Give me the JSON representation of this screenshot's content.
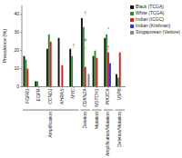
{
  "chart_data": {
    "type": "bar",
    "categories": [
      "FGFR1",
      "EGFR",
      "CCND1",
      "KHRAS",
      "MYC",
      "CDKN2A",
      "NOTCH1",
      "PIK3CA",
      "USP8"
    ],
    "series": [
      {
        "name": "Black (TCGA)",
        "color": "#111111",
        "values": [
          17,
          3,
          21,
          27,
          21,
          38,
          17,
          27,
          7
        ]
      },
      {
        "name": "White (TCGA)",
        "color": "#2e8b2e",
        "values": [
          15,
          3,
          29,
          0,
          17,
          33,
          20,
          29,
          5
        ]
      },
      {
        "name": "Indian (ICGC)",
        "color": "#cc2222",
        "values": [
          10,
          0,
          25,
          12,
          0,
          11,
          16,
          19,
          19
        ]
      },
      {
        "name": "Indian (Krishnan)",
        "color": "#3333cc",
        "values": [
          0,
          0,
          0,
          0,
          0,
          0,
          0,
          13,
          0
        ]
      },
      {
        "name": "Singaporean (Vettore)",
        "color": "#888888",
        "values": [
          0,
          0,
          0,
          0,
          0,
          7,
          0,
          0,
          0
        ]
      }
    ],
    "ylabel": "Prevalence (%)",
    "ylim": [
      0,
      45
    ],
    "yticks": [
      0,
      10,
      20,
      30,
      40
    ],
    "grid": false,
    "legend": "right",
    "category_groups": [
      {
        "name": "Amplification",
        "categories": [
          "FGFR1",
          "EGFR",
          "CCND1",
          "KHRAS",
          "MYC"
        ]
      },
      {
        "name": "Deletion",
        "categories": [
          "CDKN2A"
        ]
      },
      {
        "name": "Mutation",
        "categories": [
          "NOTCH1"
        ]
      },
      {
        "name": "Amplification/Mutation",
        "categories": [
          "PIK3CA"
        ]
      },
      {
        "name": "Deletion/Mutation",
        "categories": [
          "USP8"
        ]
      }
    ],
    "annotations": [
      {
        "text": "†",
        "category": "MYC",
        "y": 22
      },
      {
        "text": "†",
        "category": "CDKN2A",
        "y": 40
      },
      {
        "text": "#",
        "category": "CDKN2A",
        "y": 25
      },
      {
        "text": "↓",
        "category": "CDKN2A",
        "y": 21
      },
      {
        "text": "*",
        "category": "PIK3CA",
        "y": 31
      },
      {
        "text": "†",
        "category": "PIK3CA",
        "y": 21
      }
    ]
  }
}
